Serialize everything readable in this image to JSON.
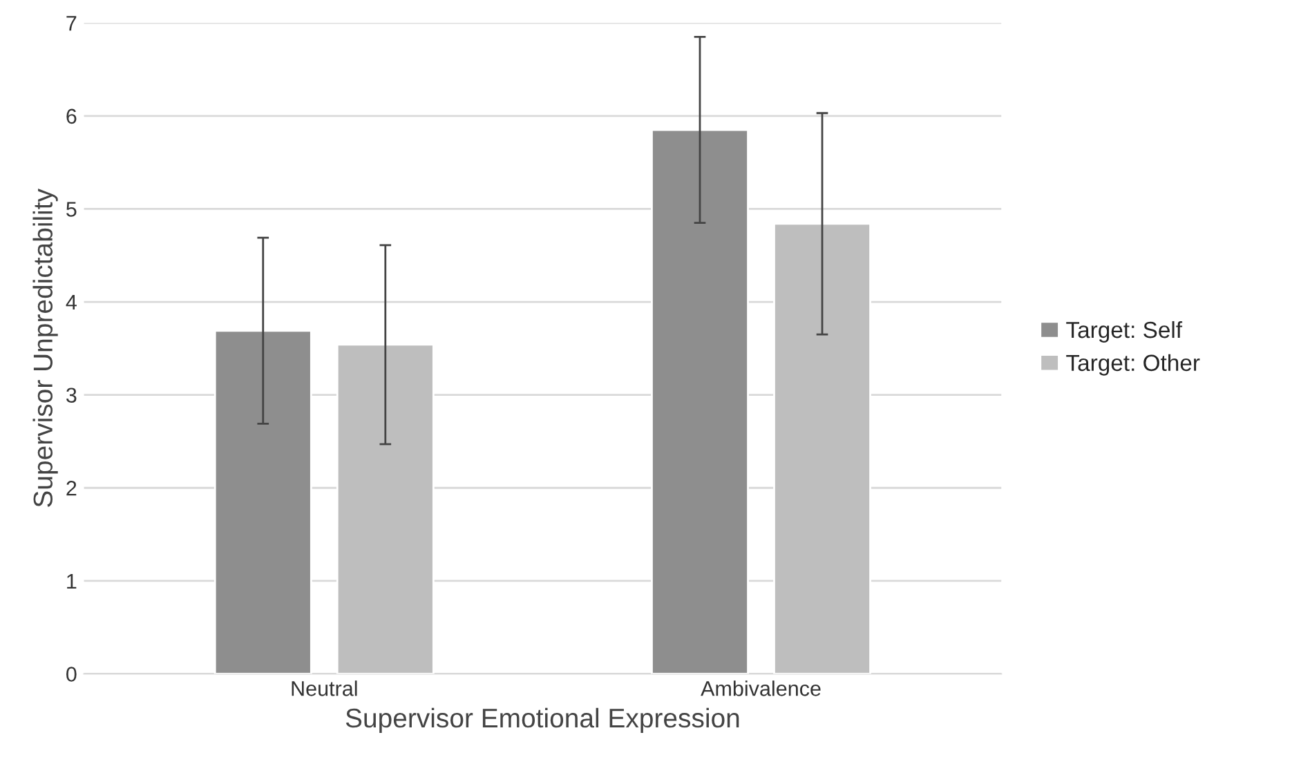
{
  "chart_data": {
    "type": "bar",
    "xlabel": "Supervisor Emotional Expression",
    "ylabel": "Supervisor Unpredictability",
    "categories": [
      "Neutral",
      "Ambivalence"
    ],
    "series": [
      {
        "name": "Target: Self",
        "color": "#8e8e8e",
        "values": [
          3.69,
          5.85
        ],
        "errors": [
          1.0,
          1.0
        ]
      },
      {
        "name": "Target: Other",
        "color": "#bebebe",
        "values": [
          3.54,
          4.84
        ],
        "errors": [
          1.07,
          1.19
        ]
      }
    ],
    "ylim": [
      0,
      7
    ],
    "yticks": [
      0,
      1,
      2,
      3,
      4,
      5,
      6,
      7
    ],
    "grid": "y",
    "legend": "right"
  }
}
